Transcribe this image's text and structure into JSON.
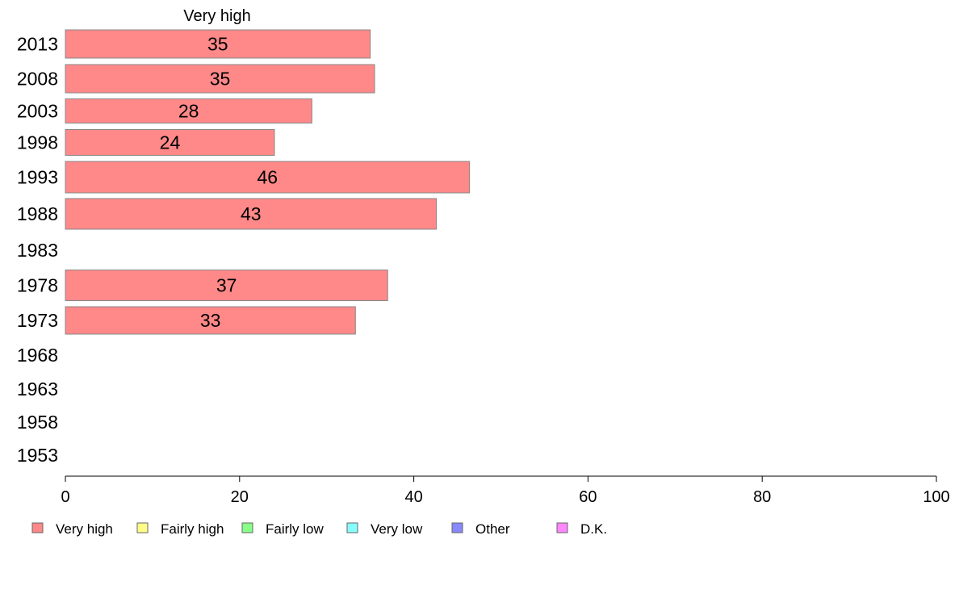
{
  "chart_data": {
    "type": "bar",
    "orientation": "horizontal",
    "title": "Very high",
    "categories": [
      "2013",
      "2008",
      "2003",
      "1998",
      "1993",
      "1988",
      "1983",
      "1978",
      "1973",
      "1968",
      "1963",
      "1958",
      "1953"
    ],
    "series": [
      {
        "name": "Very high",
        "color": "#ff8888",
        "values": [
          35,
          35.5,
          28.3,
          24,
          46.4,
          42.6,
          null,
          37,
          33.3,
          null,
          null,
          null,
          null
        ],
        "labels": [
          "35",
          "35",
          "28",
          "24",
          "46",
          "43",
          "",
          "37",
          "33",
          "",
          "",
          "",
          ""
        ]
      }
    ],
    "xlim": [
      0,
      100
    ],
    "xticks": [
      "0",
      "20",
      "40",
      "60",
      "80",
      "100"
    ],
    "grid": false,
    "legend_position": "bottom",
    "legend": [
      {
        "label": "Very high",
        "color": "#ff8888"
      },
      {
        "label": "Fairly high",
        "color": "#ffff88"
      },
      {
        "label": "Fairly low",
        "color": "#88ff88"
      },
      {
        "label": "Very low",
        "color": "#88ffff"
      },
      {
        "label": "Other",
        "color": "#8888ff"
      },
      {
        "label": "D.K.",
        "color": "#ff88ff"
      }
    ]
  }
}
